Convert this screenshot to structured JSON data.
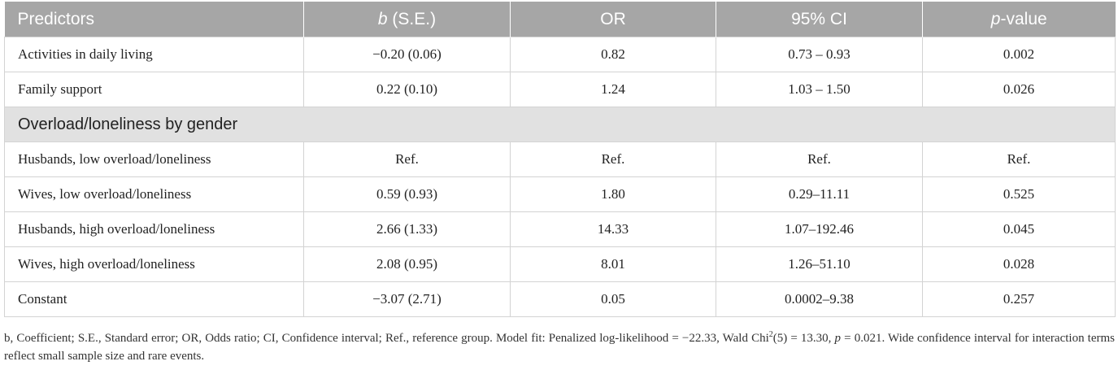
{
  "table": {
    "headers": {
      "predictors": "Predictors",
      "b_label": "b",
      "b_suffix": " (S.E.)",
      "or": "OR",
      "ci": "95% CI",
      "p_label": "p",
      "p_suffix": "-value"
    },
    "rows_top": [
      {
        "predictor": "Activities in daily living",
        "b": "−0.20 (0.06)",
        "or": "0.82",
        "ci": "0.73 – 0.93",
        "p": "0.002"
      },
      {
        "predictor": "Family support",
        "b": "0.22 (0.10)",
        "or": "1.24",
        "ci": "1.03 – 1.50",
        "p": "0.026"
      }
    ],
    "group_label": "Overload/loneliness by gender",
    "rows_group": [
      {
        "predictor": "Husbands, low overload/loneliness",
        "b": "Ref.",
        "or": "Ref.",
        "ci": "Ref.",
        "p": "Ref."
      },
      {
        "predictor": "Wives, low overload/loneliness",
        "b": "0.59 (0.93)",
        "or": "1.80",
        "ci": "0.29–11.11",
        "p": "0.525"
      },
      {
        "predictor": "Husbands, high overload/loneliness",
        "b": "2.66 (1.33)",
        "or": "14.33",
        "ci": "1.07–192.46",
        "p": "0.045"
      },
      {
        "predictor": "Wives, high overload/loneliness",
        "b": "2.08 (0.95)",
        "or": "8.01",
        "ci": "1.26–51.10",
        "p": "0.028"
      },
      {
        "predictor": "Constant",
        "b": "−3.07 (2.71)",
        "or": "0.05",
        "ci": "0.0002–9.38",
        "p": "0.257"
      }
    ]
  },
  "footnote": {
    "part1": "b, Coefficient; S.E., Standard error; OR, Odds ratio; CI, Confidence interval; Ref., reference group. Model fit: Penalized log-likelihood = −22.33, Wald Chi",
    "sup": "2",
    "part2": "(5) = 13.30, ",
    "p_italic": "p",
    "part3": " = 0.021. Wide confidence interval for interaction terms reflect small sample size and rare events."
  }
}
